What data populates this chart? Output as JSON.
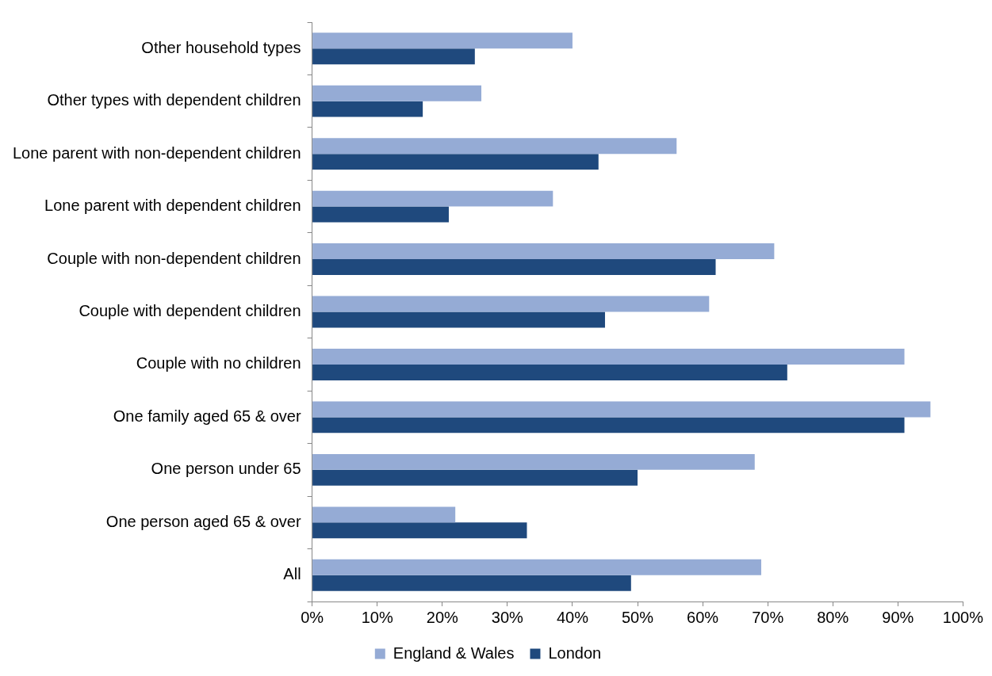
{
  "chart_data": {
    "type": "bar",
    "orientation": "horizontal",
    "categories": [
      "Other household types",
      "Other types with dependent children",
      "Lone parent with non-dependent children",
      "Lone parent with dependent children",
      "Couple with non-dependent children",
      "Couple with dependent children",
      "Couple with no children",
      "One family aged 65 & over",
      "One person under 65",
      "One person aged 65 & over",
      "All"
    ],
    "series": [
      {
        "name": "England & Wales",
        "color": "#95abd5",
        "values": [
          40,
          26,
          56,
          37,
          71,
          61,
          91,
          95,
          68,
          22,
          69
        ]
      },
      {
        "name": "London",
        "color": "#1f497d",
        "values": [
          25,
          17,
          44,
          21,
          62,
          45,
          73,
          91,
          50,
          33,
          49
        ]
      }
    ],
    "xlim": [
      0,
      100
    ],
    "xticks": [
      {
        "value": 0,
        "label": "0%"
      },
      {
        "value": 10,
        "label": "10%"
      },
      {
        "value": 20,
        "label": "20%"
      },
      {
        "value": 30,
        "label": "30%"
      },
      {
        "value": 40,
        "label": "40%"
      },
      {
        "value": 50,
        "label": "50%"
      },
      {
        "value": 60,
        "label": "60%"
      },
      {
        "value": 70,
        "label": "70%"
      },
      {
        "value": 80,
        "label": "80%"
      },
      {
        "value": 90,
        "label": "90%"
      },
      {
        "value": 100,
        "label": "100%"
      }
    ],
    "grid": false,
    "legend": "bottom"
  }
}
